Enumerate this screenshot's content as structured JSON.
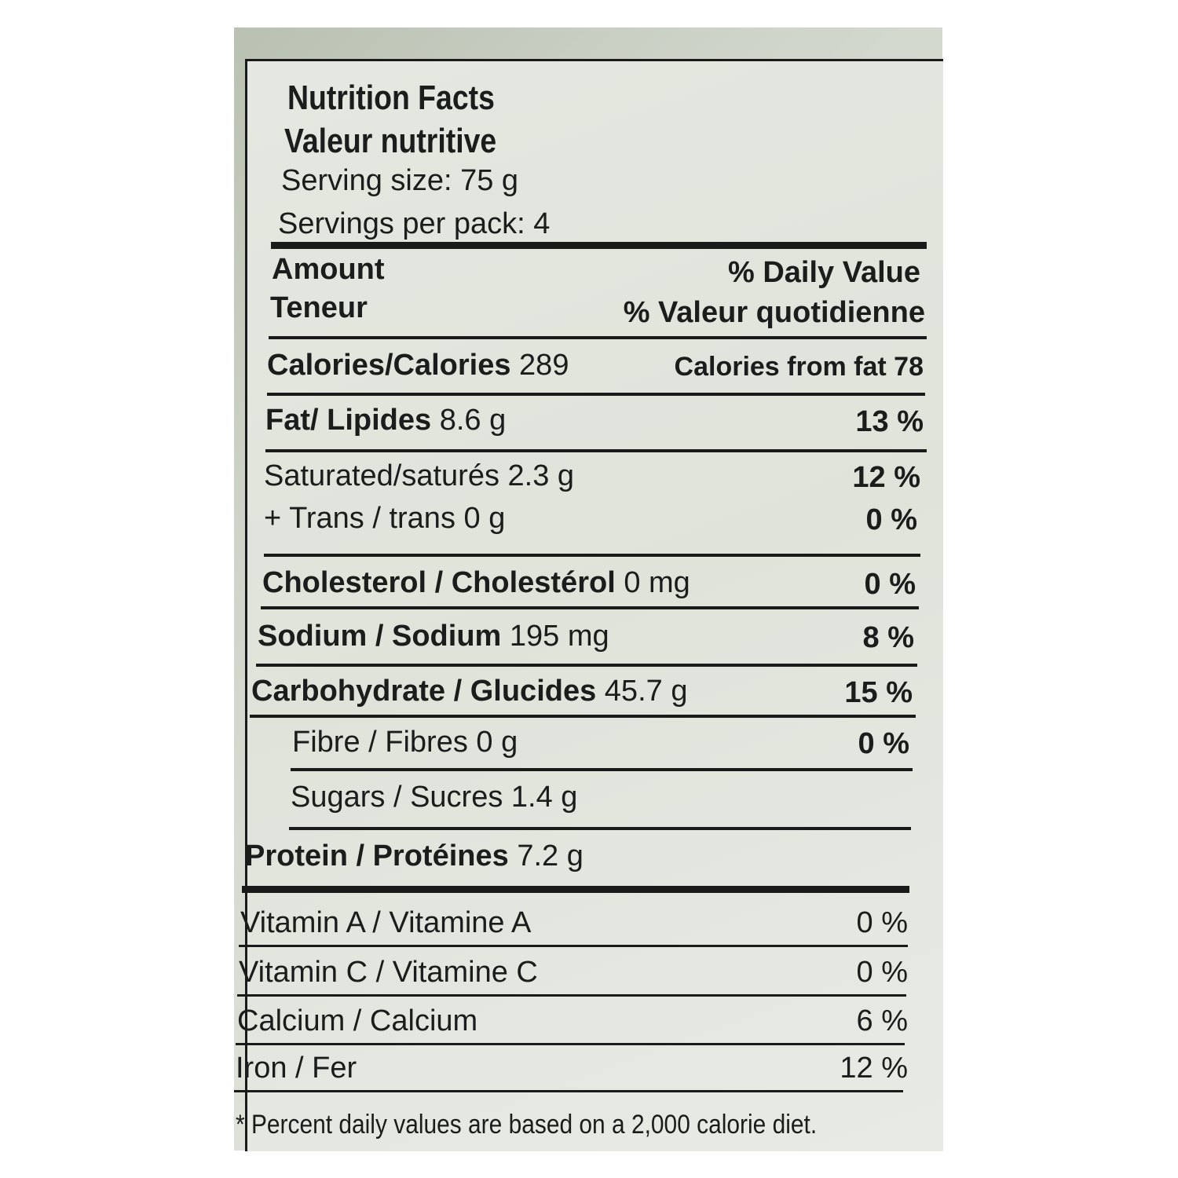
{
  "title": "Nutrition Facts",
  "title_fr": "Valeur nutritive",
  "serving_size": "Serving size: 75 g",
  "servings_per_pack": "Servings per pack: 4",
  "header": {
    "amount": "Amount",
    "amount_fr": "Teneur",
    "dv": "% Daily Value",
    "dv_fr": "% Valeur quotidienne"
  },
  "calories": {
    "label": "Calories/Calories",
    "amount": "289",
    "from_fat": "Calories from fat 78"
  },
  "rows": [
    {
      "label": "Fat/ Lipides",
      "amount": "8.6 g",
      "dv": "13 %",
      "bold": true
    },
    {
      "label": "Saturated/saturés",
      "amount": "2.3 g",
      "dv": "12 %",
      "bold": false
    },
    {
      "label": "+ Trans / trans",
      "amount": "0 g",
      "dv": "0 %",
      "bold": false
    },
    {
      "label": "Cholesterol / Cholestérol",
      "amount": "0 mg",
      "dv": "0 %",
      "bold": true
    },
    {
      "label": "Sodium / Sodium",
      "amount": "195 mg",
      "dv": "8 %",
      "bold": true
    },
    {
      "label": "Carbohydrate / Glucides",
      "amount": "45.7 g",
      "dv": "15 %",
      "bold": true
    },
    {
      "label": "Fibre / Fibres",
      "amount": "0 g",
      "dv": "0 %",
      "bold": false
    },
    {
      "label": "Sugars / Sucres",
      "amount": "1.4 g",
      "bold": false
    },
    {
      "label": "Protein / Protéines",
      "amount": "7.2 g",
      "bold": true
    }
  ],
  "vitamins": [
    {
      "label": "Vitamin A / Vitamine A",
      "dv": "0 %"
    },
    {
      "label": "Vitamin C / Vitamine C",
      "dv": "0 %"
    },
    {
      "label": "Calcium / Calcium",
      "dv": "6 %"
    },
    {
      "label": "Iron / Fer",
      "dv": "12 %"
    }
  ],
  "footnote": "* Percent daily values are based on a 2,000 calorie diet."
}
